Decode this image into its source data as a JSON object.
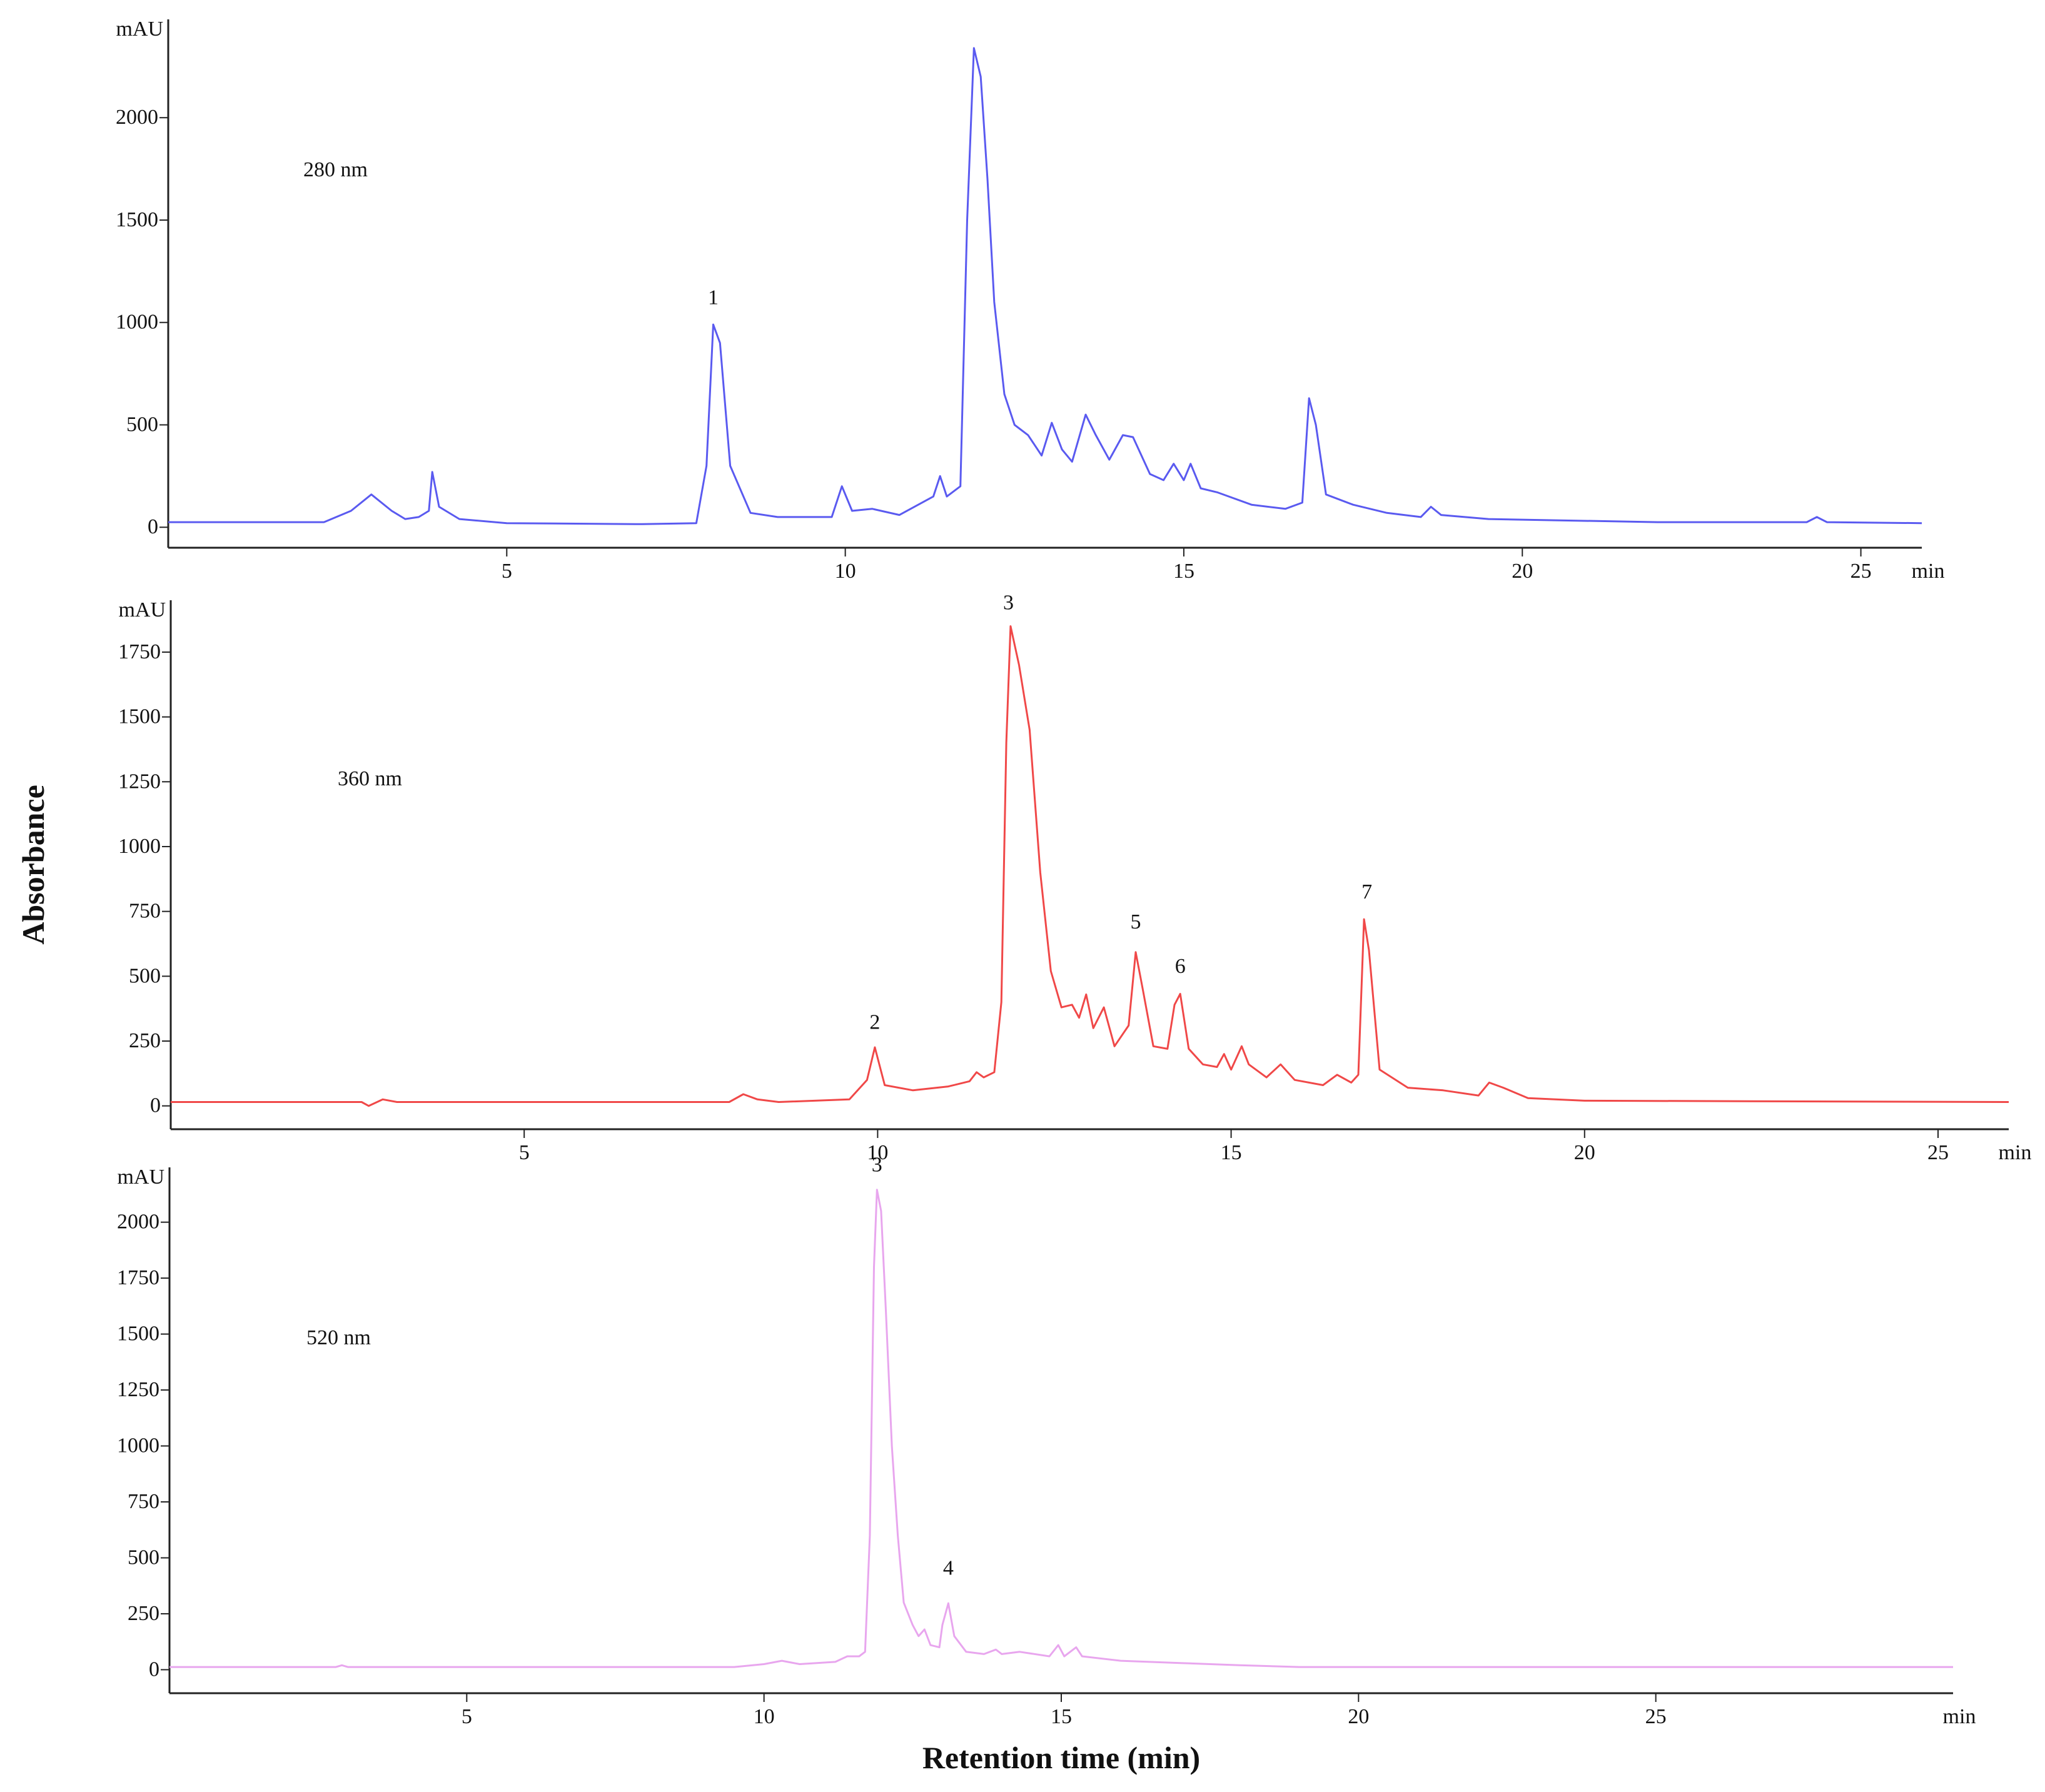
{
  "chart_data": [
    {
      "type": "line",
      "label": "280 nm",
      "color": "#5a5af0",
      "y_unit": "mAU",
      "x_unit": "min",
      "xlim": [
        0,
        25.9
      ],
      "ylim": [
        -100,
        2480
      ],
      "xticks": [
        5,
        10,
        15,
        20,
        25
      ],
      "yticks": [
        0,
        500,
        1000,
        1500,
        2000
      ],
      "x": [
        0,
        2.3,
        2.7,
        3.0,
        3.3,
        3.5,
        3.7,
        3.85,
        3.9,
        4.0,
        4.3,
        5,
        7,
        7.8,
        7.95,
        8.05,
        8.15,
        8.3,
        8.6,
        9,
        9.8,
        9.95,
        10.1,
        10.4,
        10.8,
        11.3,
        11.4,
        11.5,
        11.7,
        11.8,
        11.9,
        12.0,
        12.1,
        12.2,
        12.35,
        12.5,
        12.7,
        12.9,
        13.05,
        13.2,
        13.35,
        13.55,
        13.7,
        13.9,
        14.1,
        14.25,
        14.5,
        14.7,
        14.85,
        15.0,
        15.1,
        15.25,
        15.5,
        16,
        16.5,
        16.75,
        16.85,
        16.95,
        17.1,
        17.5,
        18,
        18.5,
        18.65,
        18.8,
        19.5,
        22,
        24.2,
        24.35,
        24.5,
        25.9
      ],
      "values": [
        25,
        25,
        80,
        160,
        80,
        40,
        50,
        80,
        270,
        100,
        40,
        20,
        15,
        20,
        300,
        990,
        900,
        300,
        70,
        50,
        50,
        200,
        80,
        90,
        60,
        150,
        250,
        150,
        200,
        1500,
        2340,
        2200,
        1700,
        1100,
        650,
        500,
        450,
        350,
        510,
        380,
        320,
        550,
        450,
        330,
        450,
        440,
        260,
        230,
        310,
        230,
        310,
        190,
        170,
        110,
        90,
        120,
        630,
        500,
        160,
        110,
        70,
        50,
        100,
        60,
        40,
        25,
        25,
        50,
        25,
        20
      ],
      "annotations": [
        {
          "text": "1",
          "x": 8.05,
          "y": 1090
        }
      ]
    },
    {
      "type": "line",
      "label": "360 nm",
      "color": "#f04848",
      "y_unit": "mAU",
      "x_unit": "min",
      "ylabel": "Absorbance",
      "xlim": [
        0,
        26
      ],
      "ylim": [
        -90,
        1950
      ],
      "xticks": [
        5,
        10,
        15,
        20,
        25
      ],
      "yticks": [
        0,
        250,
        500,
        750,
        1000,
        1250,
        1500,
        1750
      ],
      "x": [
        0,
        2.7,
        2.8,
        3.0,
        3.2,
        7.9,
        8.1,
        8.3,
        8.6,
        9.6,
        9.85,
        9.96,
        10.1,
        10.5,
        11,
        11.3,
        11.4,
        11.5,
        11.65,
        11.75,
        11.82,
        11.88,
        12.0,
        12.15,
        12.3,
        12.45,
        12.6,
        12.75,
        12.85,
        12.95,
        13.05,
        13.2,
        13.35,
        13.55,
        13.65,
        13.75,
        13.9,
        14.1,
        14.2,
        14.28,
        14.4,
        14.6,
        14.8,
        14.9,
        15.0,
        15.15,
        15.25,
        15.5,
        15.7,
        15.9,
        16.3,
        16.5,
        16.7,
        16.8,
        16.88,
        16.95,
        17.1,
        17.5,
        18,
        18.5,
        18.65,
        18.85,
        19.2,
        20,
        26
      ],
      "values": [
        15,
        15,
        0,
        25,
        15,
        15,
        45,
        25,
        15,
        25,
        100,
        226,
        80,
        60,
        75,
        95,
        130,
        110,
        130,
        400,
        1400,
        1850,
        1700,
        1450,
        900,
        520,
        380,
        390,
        340,
        430,
        300,
        380,
        230,
        310,
        593,
        450,
        230,
        220,
        390,
        432,
        220,
        160,
        150,
        200,
        140,
        230,
        160,
        110,
        160,
        100,
        80,
        120,
        90,
        120,
        720,
        600,
        140,
        70,
        60,
        40,
        90,
        70,
        30,
        20,
        15
      ],
      "annotations": [
        {
          "text": "2",
          "x": 9.96,
          "y": 297
        },
        {
          "text": "3",
          "x": 11.85,
          "y": 1915
        },
        {
          "text": "5",
          "x": 13.65,
          "y": 684
        },
        {
          "text": "6",
          "x": 14.28,
          "y": 513
        },
        {
          "text": "7",
          "x": 16.92,
          "y": 800
        }
      ]
    },
    {
      "type": "line",
      "label": "520 nm",
      "color": "#e8a6ee",
      "y_unit": "mAU",
      "x_unit": "min",
      "xlabel": "Retention time (min)",
      "xlim": [
        0,
        30
      ],
      "ylim": [
        -105,
        2245
      ],
      "xticks": [
        5,
        10,
        15,
        20,
        25
      ],
      "yticks": [
        0,
        250,
        500,
        750,
        1000,
        1250,
        1500,
        1750,
        2000
      ],
      "x": [
        0,
        2.8,
        2.9,
        3.0,
        9.5,
        10.0,
        10.3,
        10.6,
        11.2,
        11.4,
        11.6,
        11.7,
        11.78,
        11.85,
        11.9,
        11.97,
        12.05,
        12.15,
        12.25,
        12.35,
        12.5,
        12.6,
        12.7,
        12.8,
        12.95,
        13.0,
        13.1,
        13.2,
        13.4,
        13.7,
        13.9,
        14.0,
        14.3,
        14.8,
        14.95,
        15.05,
        15.25,
        15.35,
        16,
        17,
        18,
        19,
        30
      ],
      "values": [
        12,
        12,
        20,
        12,
        12,
        25,
        40,
        25,
        35,
        60,
        60,
        80,
        600,
        1800,
        2145,
        2050,
        1600,
        1000,
        600,
        300,
        200,
        150,
        180,
        110,
        100,
        200,
        297,
        150,
        80,
        70,
        90,
        70,
        80,
        60,
        110,
        60,
        100,
        60,
        40,
        30,
        20,
        12,
        12
      ],
      "annotations": [
        {
          "text": "3",
          "x": 11.9,
          "y": 2227
        },
        {
          "text": "4",
          "x": 13.1,
          "y": 425
        }
      ]
    }
  ]
}
